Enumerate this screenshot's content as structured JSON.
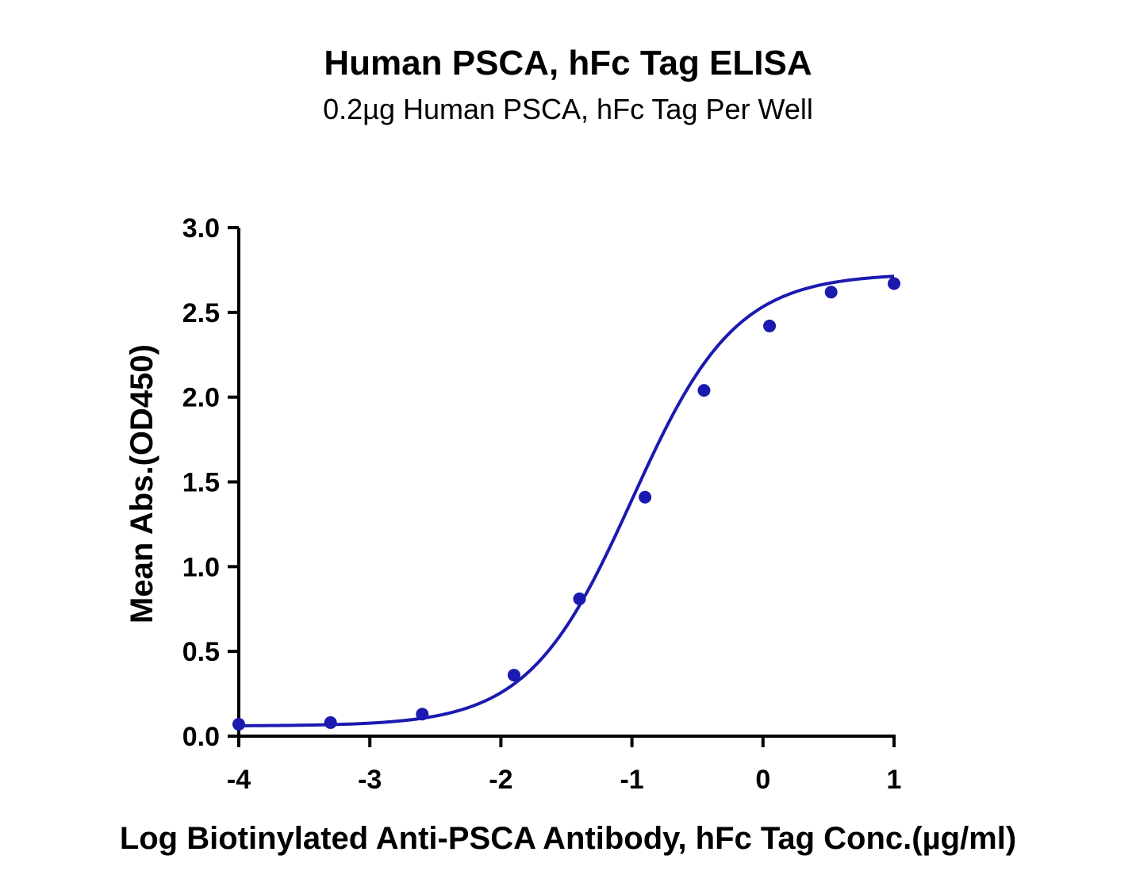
{
  "chart_data": {
    "type": "line",
    "title": "Human PSCA, hFc Tag ELISA",
    "subtitle": "0.2µg Human PSCA, hFc Tag Per Well",
    "xlabel": "Log Biotinylated Anti-PSCA Antibody, hFc Tag Conc.(µg/ml)",
    "ylabel": "Mean Abs.(OD450)",
    "xlim": [
      -4,
      1
    ],
    "ylim": [
      0,
      3
    ],
    "xticks": [
      -4,
      -3,
      -2,
      -1,
      0,
      1
    ],
    "xtick_labels": [
      "-4",
      "-3",
      "-2",
      "-1",
      "0",
      "1"
    ],
    "yticks": [
      0,
      0.5,
      1.0,
      1.5,
      2.0,
      2.5,
      3.0
    ],
    "ytick_labels": [
      "0.0",
      "0.5",
      "1.0",
      "1.5",
      "2.0",
      "2.5",
      "3.0"
    ],
    "grid": false,
    "legend": "none",
    "series": [
      {
        "name": "Mean Abs.(OD450)",
        "color": "#1a1ab0",
        "x": [
          -4.0,
          -3.3,
          -2.6,
          -1.9,
          -1.4,
          -0.9,
          -0.45,
          0.05,
          0.52,
          1.0
        ],
        "y": [
          0.07,
          0.08,
          0.13,
          0.36,
          0.81,
          1.41,
          2.04,
          2.42,
          2.62,
          2.67
        ]
      }
    ],
    "fit_curve": {
      "model": "4PL",
      "bottom": 0.06,
      "top": 2.73,
      "log_ec50": -1.0,
      "hill": 1.1
    }
  }
}
